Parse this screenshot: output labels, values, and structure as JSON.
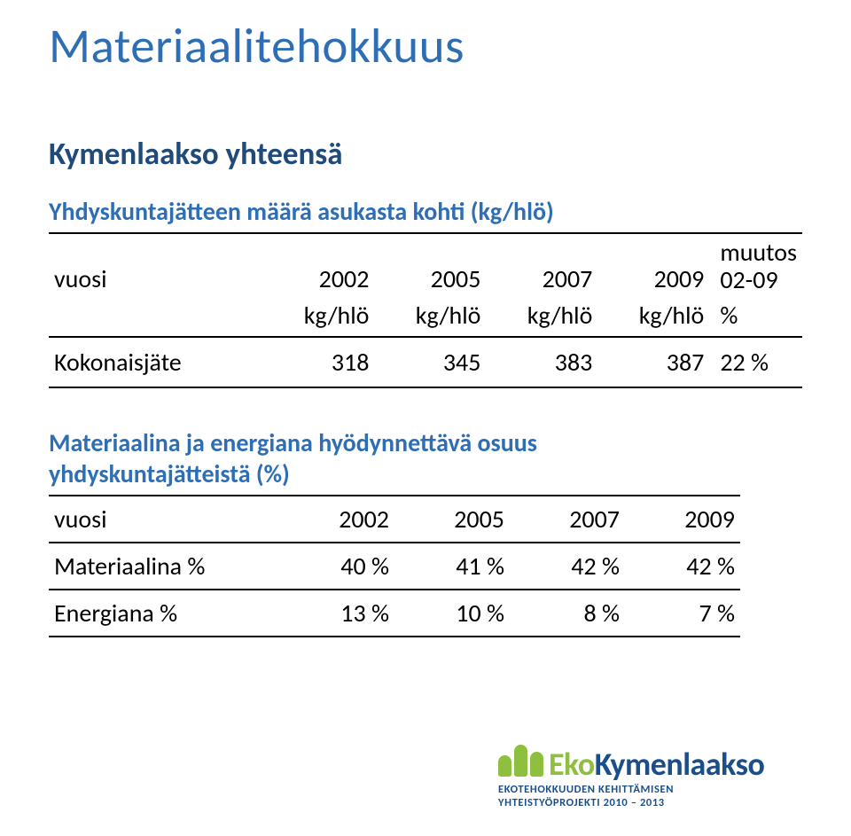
{
  "colors": {
    "title": "#2e6eb5",
    "subtitle": "#204a7a",
    "table_title": "#2e6eb5",
    "text": "#000000",
    "border": "#000000",
    "logo_green": "#8fbf3f",
    "logo_blue": "#1a4f8b",
    "logo_sub": "#1a4f8b",
    "background": "#ffffff"
  },
  "title": "Materiaalitehokkuus",
  "subtitle": "Kymenlaakso yhteensä",
  "table1": {
    "title": "Yhdyskuntajätteen määrä asukasta kohti (kg/hlö)",
    "header_row1": {
      "vuosi": "vuosi",
      "y2002": "2002",
      "y2005": "2005",
      "y2007": "2007",
      "y2009": "2009",
      "muutos": "muutos\n02-09"
    },
    "header_row2": {
      "c0": "",
      "c1": "kg/hlö",
      "c2": "kg/hlö",
      "c3": "kg/hlö",
      "c4": "kg/hlö",
      "c5": "%"
    },
    "row": {
      "label": "Kokonaisjäte",
      "v2002": "318",
      "v2005": "345",
      "v2007": "383",
      "v2009": "387",
      "change": "22 %"
    }
  },
  "table2": {
    "title_line1": "Materiaalina ja energiana hyödynnettävä osuus",
    "title_line2": "yhdyskuntajätteistä (%)",
    "header": {
      "vuosi": "vuosi",
      "y2002": "2002",
      "y2005": "2005",
      "y2007": "2007",
      "y2009": "2009"
    },
    "rows": [
      {
        "label": "Materiaalina %",
        "v2002": "40 %",
        "v2005": "41 %",
        "v2007": "42 %",
        "v2009": "42 %"
      },
      {
        "label": "Energiana %",
        "v2002": "13 %",
        "v2005": "10 %",
        "v2007": "8 %",
        "v2009": "7 %"
      }
    ]
  },
  "logo": {
    "eko": "Eko",
    "rest": "Kymenlaakso",
    "sub1": "EKOTEHOKKUUDEN KEHITTÄMISEN",
    "sub2": "YHTEISTYÖPROJEKTI 2010 – 2013"
  }
}
